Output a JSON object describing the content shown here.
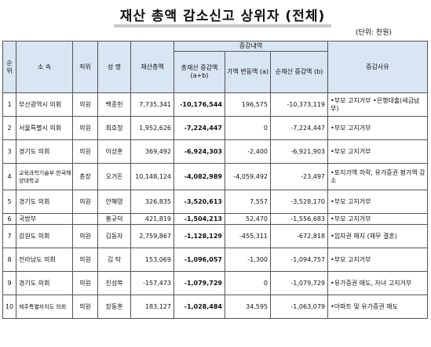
{
  "title": "재산 총액 감소신고 상위자 (전체)",
  "unit_note": "(단위: 천원)",
  "headers": {
    "rank": "순위",
    "affiliation": "소 속",
    "position": "직위",
    "name": "성 명",
    "total": "재산총액",
    "change_group": "증감내역",
    "total_change": "총재산 증감액 (a+b)",
    "price_change": "가액 변동액 (a)",
    "net_change": "순재산 증감액 (b)",
    "reason": "증감사유"
  },
  "rows": [
    {
      "rank": "1",
      "affil": "부산광역시 의회",
      "pos": "의원",
      "name": "백종헌",
      "total": "7,735,341",
      "tc": "-10,176,544",
      "pc": "196,575",
      "nc": "-10,373,119",
      "reason": "•부모 고지거부 •은행대출(세금납부)"
    },
    {
      "rank": "2",
      "affil": "서울특별시 의회",
      "pos": "의원",
      "name": "최호정",
      "total": "1,952,626",
      "tc": "-7,224,447",
      "pc": "0",
      "nc": "-7,224,447",
      "reason": "•부모 고지거부"
    },
    {
      "rank": "3",
      "affil": "경기도 의회",
      "pos": "의원",
      "name": "이상훈",
      "total": "369,492",
      "tc": "-6,924,303",
      "pc": "-2,400",
      "nc": "-6,921,903",
      "reason": "•부모 고지거부"
    },
    {
      "rank": "4",
      "affil": "교육과학기술부 한국해양대학교",
      "pos": "총장",
      "name": "오거돈",
      "total": "10,148,124",
      "tc": "-4,082,989",
      "pc": "-4,059,492",
      "nc": "-23,497",
      "reason": "•토지가액 하락, 유가증권 평가액 감소"
    },
    {
      "rank": "5",
      "affil": "경기도 의회",
      "pos": "의원",
      "name": "안혜영",
      "total": "326,835",
      "tc": "-3,520,613",
      "pc": "7,557",
      "nc": "-3,528,170",
      "reason": "•부모 고지거부"
    },
    {
      "rank": "6",
      "affil": "국방부",
      "pos": "",
      "name": "홍규덕",
      "total": "421,819",
      "tc": "-1,504,213",
      "pc": "52,470",
      "nc": "-1,556,683",
      "reason": "•부모 고지거부"
    },
    {
      "rank": "7",
      "affil": "강원도 의회",
      "pos": "의원",
      "name": "김동자",
      "total": "2,759,867",
      "tc": "-1,128,129",
      "pc": "-455,311",
      "nc": "-672,818",
      "reason": "•임차권 해지 (채무 결혼)"
    },
    {
      "rank": "8",
      "affil": "전라남도 의회",
      "pos": "의원",
      "name": "김 탁",
      "total": "153,069",
      "tc": "-1,096,057",
      "pc": "-1,300",
      "nc": "-1,094,757",
      "reason": "•부모 고지거부"
    },
    {
      "rank": "9",
      "affil": "경기도 의회",
      "pos": "의원",
      "name": "진성복",
      "total": "-157,473",
      "tc": "-1,079,729",
      "pc": "0",
      "nc": "-1,079,729",
      "reason": "•유가증권 매도, 자녀 고지거부"
    },
    {
      "rank": "10",
      "affil": "제주특별자치도 의회",
      "pos": "의원",
      "name": "장동훈",
      "total": "183,127",
      "tc": "-1,028,484",
      "pc": "34,595",
      "nc": "-1,063,079",
      "reason": "•아파트 및 유가증권 매도"
    }
  ]
}
